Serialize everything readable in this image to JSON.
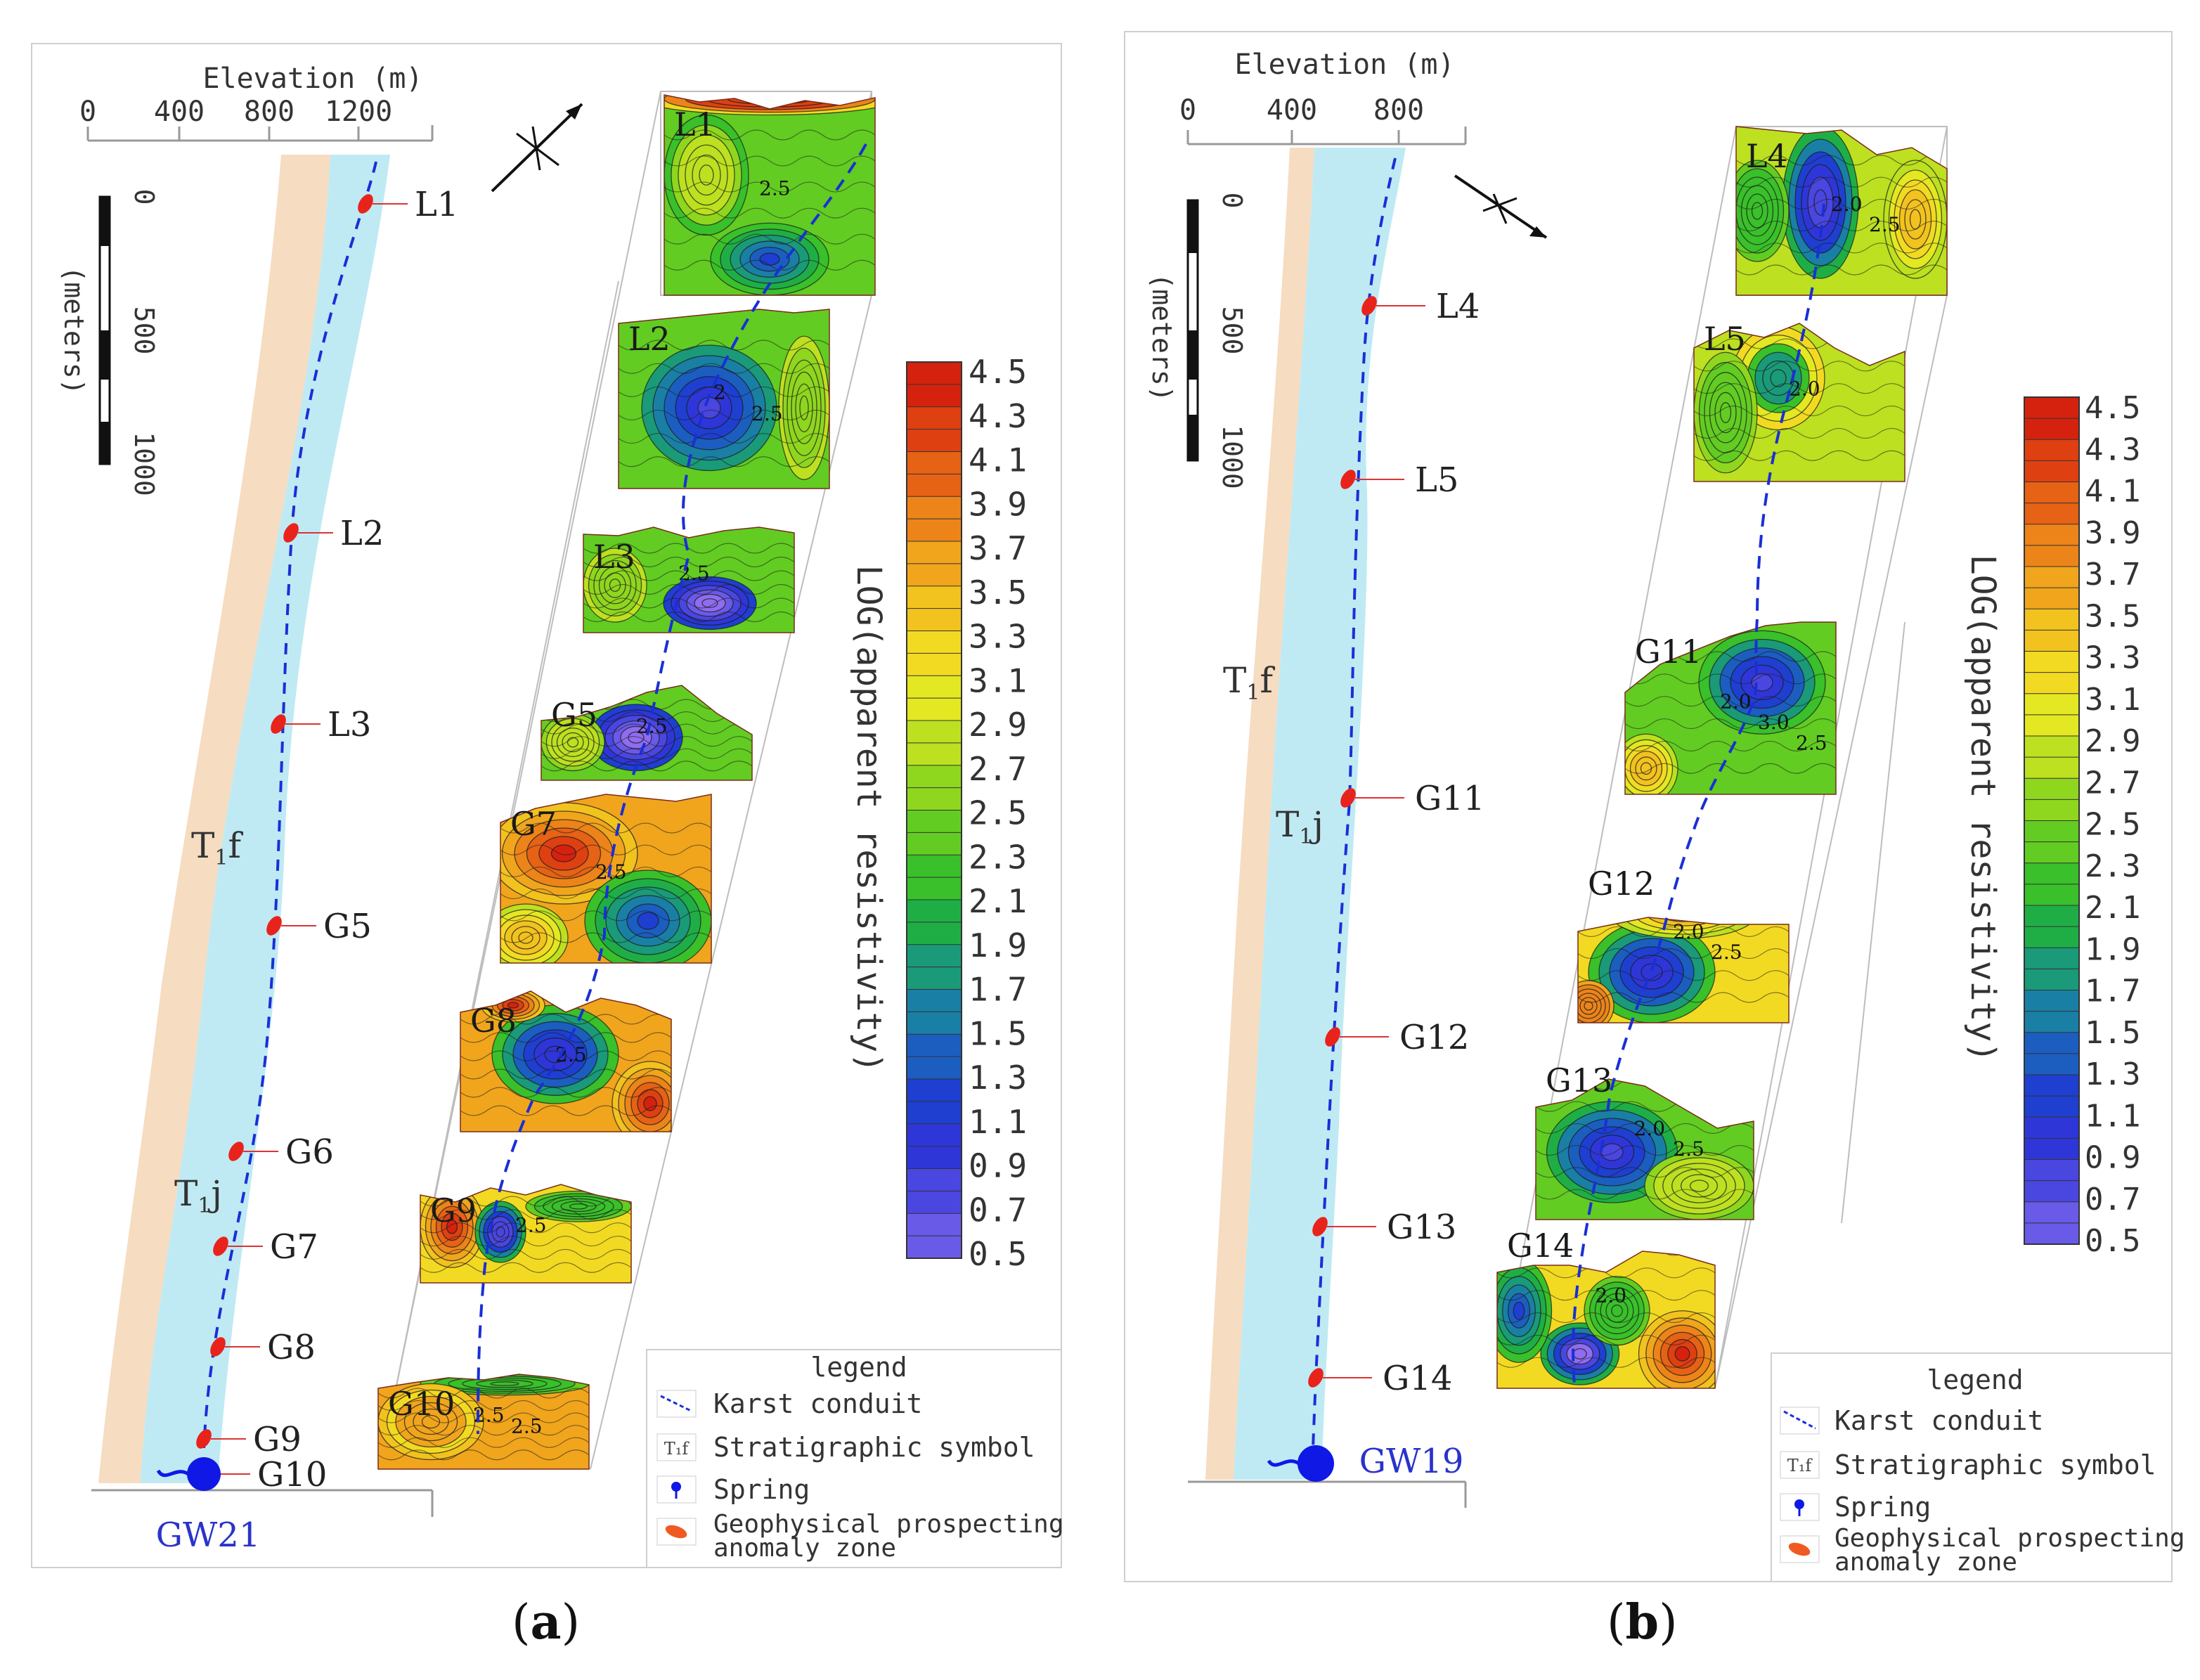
{
  "panels": [
    {
      "id": "a",
      "caption_open": "(",
      "caption_letter": "a",
      "caption_close": ")",
      "elevation_title": "Elevation (m)",
      "elevation_ticks": [
        "0",
        "400",
        "800",
        "1200"
      ],
      "scale_ticks": [
        "0",
        "500",
        "1000"
      ],
      "scale_unit": "(meters)",
      "strat_upper": "T",
      "strat_upper_sub": "1",
      "strat_upper_suffix": "f",
      "strat_lower": "T",
      "strat_lower_sub": "1",
      "strat_lower_suffix": "j",
      "spring_label": "GW21",
      "map_points": [
        "L1",
        "L2",
        "L3",
        "G5",
        "G6",
        "G7",
        "G8",
        "G9",
        "G10"
      ],
      "profiles": [
        "L1",
        "L2",
        "L3",
        "G5",
        "G7",
        "G8",
        "G9",
        "G10"
      ],
      "profile_contours": [
        [
          "2.5"
        ],
        [
          "2",
          "2.5"
        ],
        [
          "2.5"
        ],
        [
          "2.5"
        ],
        [
          "2.5"
        ],
        [
          "2.5"
        ],
        [
          "2.5"
        ],
        [
          "2.5",
          "2.5"
        ]
      ],
      "colorbar_title": "LOG(apparent resistivity)",
      "colorbar_ticks": [
        "4.5",
        "4.3",
        "4.1",
        "3.9",
        "3.7",
        "3.5",
        "3.3",
        "3.1",
        "2.9",
        "2.7",
        "2.5",
        "2.3",
        "2.1",
        "1.9",
        "1.7",
        "1.5",
        "1.3",
        "1.1",
        "0.9",
        "0.7",
        "0.5"
      ],
      "legend": {
        "title": "legend",
        "karst": "Karst conduit",
        "strat_icon": "T₁f",
        "strat": "Stratigraphic symbol",
        "spring": "Spring",
        "anomaly_line1": "Geophysical prospecting",
        "anomaly_line2": "anomaly zone"
      }
    },
    {
      "id": "b",
      "caption_open": "(",
      "caption_letter": "b",
      "caption_close": ")",
      "elevation_title": "Elevation (m)",
      "elevation_ticks": [
        "0",
        "400",
        "800"
      ],
      "scale_ticks": [
        "0",
        "500",
        "1000"
      ],
      "scale_unit": "(meters)",
      "strat_upper": "T",
      "strat_upper_sub": "1",
      "strat_upper_suffix": "f",
      "strat_lower": "T",
      "strat_lower_sub": "1",
      "strat_lower_suffix": "j",
      "spring_label": "GW19",
      "map_points": [
        "L4",
        "L5",
        "G11",
        "G12",
        "G13",
        "G14"
      ],
      "profiles": [
        "L4",
        "L5",
        "G11",
        "G12",
        "G13",
        "G14"
      ],
      "profile_contours": [
        [
          "2.0",
          "2.5"
        ],
        [
          "2.0"
        ],
        [
          "2.0",
          "3.0",
          "2.5"
        ],
        [
          "2.0",
          "2.5"
        ],
        [
          "2.0",
          "2.5"
        ],
        [
          "2.0"
        ]
      ],
      "colorbar_title": "LOG(apparent resistivity)",
      "colorbar_ticks": [
        "4.5",
        "4.3",
        "4.1",
        "3.9",
        "3.7",
        "3.5",
        "3.3",
        "3.1",
        "2.9",
        "2.7",
        "2.5",
        "2.3",
        "2.1",
        "1.9",
        "1.7",
        "1.5",
        "1.3",
        "1.1",
        "0.9",
        "0.7",
        "0.5"
      ],
      "legend": {
        "title": "legend",
        "karst": "Karst conduit",
        "strat_icon": "T₁f",
        "strat": "Stratigraphic symbol",
        "spring": "Spring",
        "anomaly_line1": "Geophysical prospecting",
        "anomaly_line2": "anomaly zone"
      }
    }
  ],
  "colors": {
    "river": "#bfeaf4",
    "strata": "#f6dcc0",
    "conduit": "#1a2fd6",
    "anomaly": "#e8231c",
    "spring": "#1018e6",
    "label_blue": "#2a33c9",
    "scale": [
      "#8f6cf0",
      "#6a5ae8",
      "#4a46e0",
      "#2f36d8",
      "#1e3fd0",
      "#1b5ec0",
      "#1a7fa4",
      "#1a9a78",
      "#1fae46",
      "#39c02a",
      "#62cc22",
      "#8fd61f",
      "#bde020",
      "#e3e822",
      "#f2da22",
      "#f2c21f",
      "#f0a51d",
      "#ec8419",
      "#e66215",
      "#de4012",
      "#d4220f"
    ]
  }
}
